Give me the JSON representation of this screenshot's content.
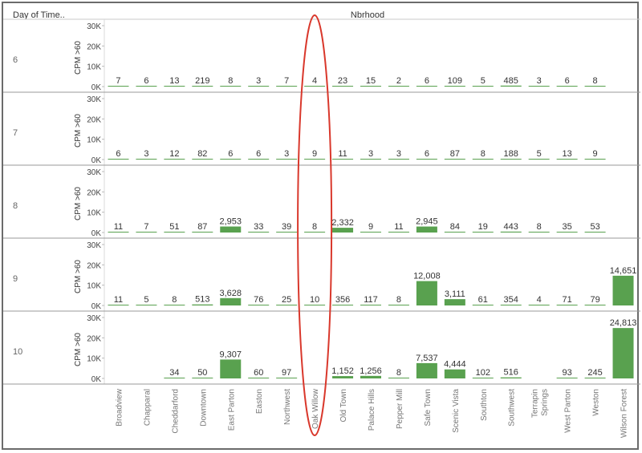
{
  "header": {
    "row_dim": "Day of Time..",
    "col_dim": "Nbrhood"
  },
  "chart_data": {
    "type": "bar",
    "layout": "small-multiples",
    "y_axis_label": "CPM >60",
    "y_ticks": [
      "30K",
      "20K",
      "10K",
      "0K"
    ],
    "ylim": [
      0,
      30000
    ],
    "bar_color": "#59a14f",
    "highlight": {
      "category": "Oak Willow",
      "shape": "ellipse",
      "color": "#d9382c"
    },
    "categories": [
      "Broadview",
      "Chapparal",
      "Cheddarford",
      "Downtown",
      "East Parton",
      "Easton",
      "Northwest",
      "Oak Willow",
      "Old Town",
      "Palace Hills",
      "Pepper Mill",
      "Safe Town",
      "Scenic Vista",
      "Southton",
      "Southwest",
      "Terrapin Springs",
      "West Parton",
      "Weston",
      "Wilson Forest"
    ],
    "category_labels": [
      [
        "Broadview"
      ],
      [
        "Chapparal"
      ],
      [
        "Cheddarford"
      ],
      [
        "Downtown"
      ],
      [
        "East Parton"
      ],
      [
        "Easton"
      ],
      [
        "Northwest"
      ],
      [
        "Oak Willow"
      ],
      [
        "Old Town"
      ],
      [
        "Palace Hills"
      ],
      [
        "Pepper Mill"
      ],
      [
        "Safe Town"
      ],
      [
        "Scenic Vista"
      ],
      [
        "Southton"
      ],
      [
        "Southwest"
      ],
      [
        "Terrapin",
        "Springs"
      ],
      [
        "West Parton"
      ],
      [
        "Weston"
      ],
      [
        "Wilson Forest"
      ]
    ],
    "series": [
      {
        "name": "6",
        "values": [
          7,
          6,
          13,
          219,
          8,
          3,
          7,
          4,
          23,
          15,
          2,
          6,
          109,
          5,
          485,
          3,
          6,
          8,
          null
        ],
        "labels": [
          "7",
          "6",
          "13",
          "219",
          "8",
          "3",
          "7",
          "4",
          "23",
          "15",
          "2",
          "6",
          "109",
          "5",
          "485",
          "3",
          "6",
          "8",
          ""
        ]
      },
      {
        "name": "7",
        "values": [
          6,
          3,
          12,
          82,
          6,
          6,
          3,
          9,
          11,
          3,
          3,
          6,
          87,
          8,
          188,
          5,
          13,
          9,
          null
        ],
        "labels": [
          "6",
          "3",
          "12",
          "82",
          "6",
          "6",
          "3",
          "9",
          "11",
          "3",
          "3",
          "6",
          "87",
          "8",
          "188",
          "5",
          "13",
          "9",
          ""
        ]
      },
      {
        "name": "8",
        "values": [
          11,
          7,
          51,
          87,
          2953,
          33,
          39,
          8,
          2332,
          9,
          11,
          2945,
          84,
          19,
          443,
          8,
          35,
          53,
          null
        ],
        "labels": [
          "11",
          "7",
          "51",
          "87",
          "2,953",
          "33",
          "39",
          "8",
          "2,332",
          "9",
          "11",
          "2,945",
          "84",
          "19",
          "443",
          "8",
          "35",
          "53",
          ""
        ]
      },
      {
        "name": "9",
        "values": [
          11,
          5,
          8,
          513,
          3628,
          76,
          25,
          10,
          356,
          117,
          8,
          12008,
          3111,
          61,
          354,
          4,
          71,
          79,
          14651
        ],
        "labels": [
          "11",
          "5",
          "8",
          "513",
          "3,628",
          "76",
          "25",
          "10",
          "356",
          "117",
          "8",
          "12,008",
          "3,111",
          "61",
          "354",
          "4",
          "71",
          "79",
          "14,651"
        ]
      },
      {
        "name": "10",
        "values": [
          null,
          null,
          34,
          50,
          9307,
          60,
          97,
          null,
          1152,
          1256,
          8,
          7537,
          4444,
          102,
          516,
          null,
          93,
          245,
          24813
        ],
        "labels": [
          "",
          "",
          "34",
          "50",
          "9,307",
          "60",
          "97",
          "",
          "1,152",
          "1,256",
          "8",
          "7,537",
          "4,444",
          "102",
          "516",
          "",
          "93",
          "245",
          "24,813"
        ]
      }
    ]
  }
}
